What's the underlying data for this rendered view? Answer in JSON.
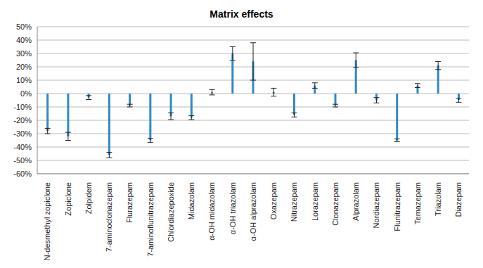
{
  "chart_data": {
    "type": "bar",
    "title": "Matrix effects",
    "categories": [
      "N-desmethyl zopiclone",
      "Zopiclone",
      "Zolpidem",
      "7-aminoclonazepam",
      "Flurazepam",
      "7-aminoflunitrazepam",
      "Chlordiazepoxide",
      "Midazolam",
      "α-OH midazolam",
      "α-OH triazolam",
      "α-OH alprazolam",
      "Oxazepam",
      "Nitrazepam",
      "Lorazepam",
      "Clonazepam",
      "Alprazolam",
      "Nordiazepam",
      "Flunitrazepam",
      "Temazepam",
      "Triazolam",
      "Diazepam"
    ],
    "values": [
      -28,
      -32,
      -3,
      -46,
      -9,
      -35,
      -17,
      -18,
      1,
      30,
      24,
      1,
      -16,
      6,
      -9,
      25,
      -5,
      -35,
      6,
      21,
      -5
    ],
    "errors": [
      2,
      3,
      1.5,
      2,
      1,
      1.5,
      2.5,
      1.5,
      2,
      5,
      14,
      3,
      1.5,
      2,
      1,
      5.5,
      2,
      1,
      1.5,
      3,
      1.5
    ],
    "color": "#2f8ac4",
    "ylim": [
      -60,
      50
    ],
    "yticks": [
      {
        "value": -60,
        "label": "-60%"
      },
      {
        "value": -50,
        "label": "-50%"
      },
      {
        "value": -40,
        "label": "-40%"
      },
      {
        "value": -30,
        "label": "-30%"
      },
      {
        "value": -20,
        "label": "-20%"
      },
      {
        "value": -10,
        "label": "-10%"
      },
      {
        "value": 0,
        "label": "0%"
      },
      {
        "value": 10,
        "label": "10%"
      },
      {
        "value": 20,
        "label": "20%"
      },
      {
        "value": 30,
        "label": "30%"
      },
      {
        "value": 40,
        "label": "40%"
      },
      {
        "value": 50,
        "label": "50%"
      }
    ],
    "grid": true
  }
}
